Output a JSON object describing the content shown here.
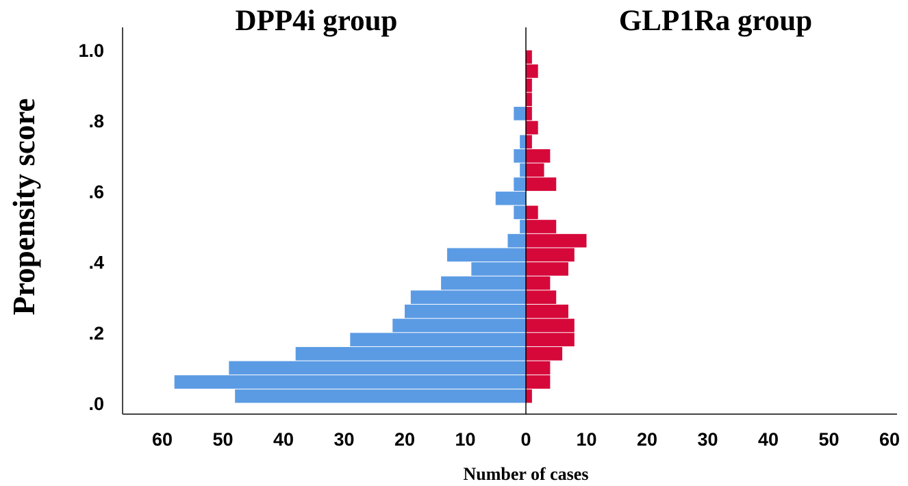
{
  "chart_data": {
    "type": "bar",
    "orientation": "horizontal-back-to-back",
    "ylabel": "Propensity score",
    "xlabel": "Number of cases",
    "ylim": [
      0.0,
      1.0
    ],
    "y_ticks": [
      ".0",
      ".2",
      ".4",
      ".6",
      ".8",
      "1.0"
    ],
    "y_tick_values": [
      0.0,
      0.2,
      0.4,
      0.6,
      0.8,
      1.0
    ],
    "x_ticks": [
      "60",
      "50",
      "40",
      "30",
      "20",
      "10",
      "0",
      "10",
      "20",
      "30",
      "40",
      "50",
      "60"
    ],
    "x_tick_values": [
      -60,
      -50,
      -40,
      -30,
      -20,
      -10,
      0,
      10,
      20,
      30,
      40,
      50,
      60
    ],
    "xlim": [
      -60,
      60
    ],
    "bin_width": 0.04,
    "bin_centers": [
      0.02,
      0.06,
      0.1,
      0.14,
      0.18,
      0.22,
      0.26,
      0.3,
      0.34,
      0.38,
      0.42,
      0.46,
      0.5,
      0.54,
      0.58,
      0.62,
      0.66,
      0.7,
      0.74,
      0.78,
      0.82,
      0.86,
      0.9,
      0.94,
      0.98
    ],
    "grid": false,
    "series": [
      {
        "name": "DPP4i group",
        "side": "left",
        "color": "#5b9be4",
        "values": [
          48,
          58,
          49,
          38,
          29,
          22,
          20,
          19,
          14,
          9,
          13,
          3,
          1,
          2,
          5,
          2,
          1,
          2,
          1,
          0,
          2,
          0,
          0,
          0,
          0
        ]
      },
      {
        "name": "GLP1Ra group",
        "side": "right",
        "color": "#d6083a",
        "values": [
          1,
          4,
          4,
          6,
          8,
          8,
          7,
          5,
          4,
          7,
          8,
          10,
          5,
          2,
          0,
          5,
          3,
          4,
          1,
          2,
          1,
          1,
          1,
          2,
          1
        ]
      }
    ]
  }
}
